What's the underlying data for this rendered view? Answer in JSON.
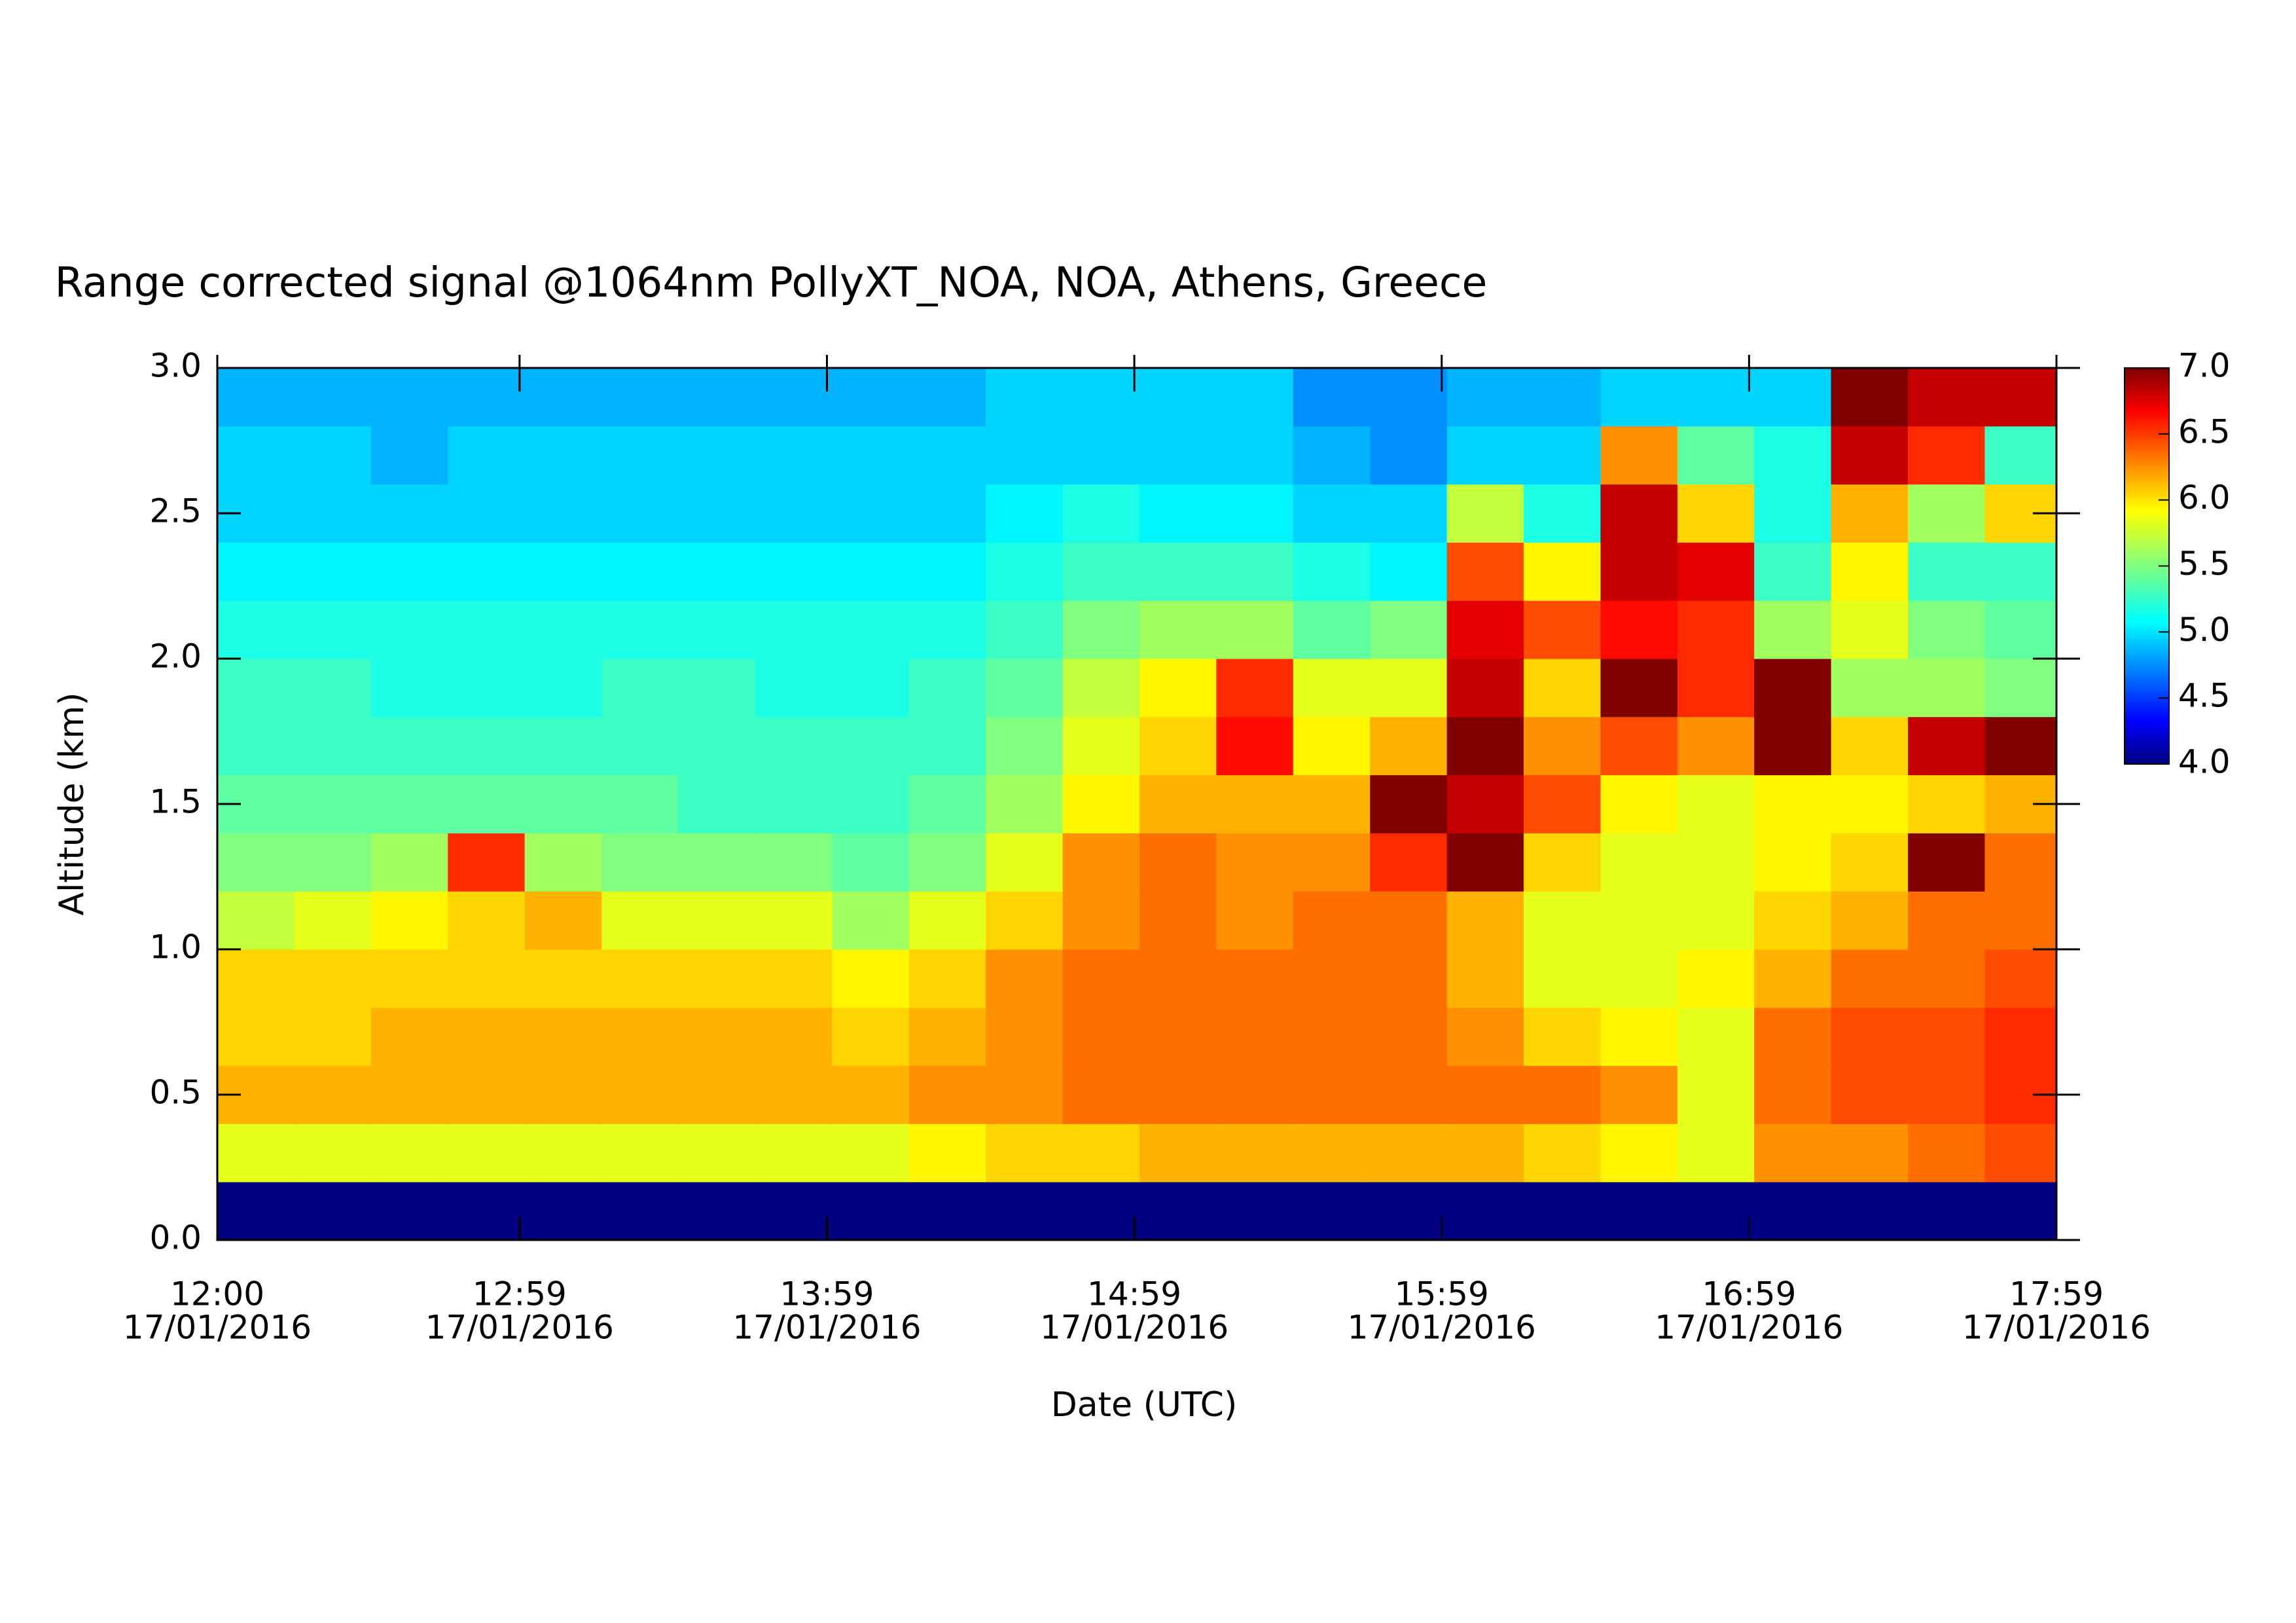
{
  "chart_data": {
    "type": "heatmap",
    "title": "Range corrected signal @1064nm  PollyXT_NOA, NOA, Athens, Greece",
    "xlabel": "Date (UTC)",
    "ylabel": "Altitude (km)",
    "xlim": [
      0,
      359
    ],
    "xticks": [
      {
        "value": 0,
        "label": "12:00"
      },
      {
        "value": 59,
        "label": "12:59"
      },
      {
        "value": 119,
        "label": "13:59"
      },
      {
        "value": 179,
        "label": "14:59"
      },
      {
        "value": 239,
        "label": "15:59"
      },
      {
        "value": 299,
        "label": "16:59"
      },
      {
        "value": 359,
        "label": "17:59"
      }
    ],
    "xtick_dates": [
      "17/01/2016",
      "17/01/2016",
      "17/01/2016",
      "17/01/2016",
      "17/01/2016",
      "17/01/2016",
      "17/01/2016"
    ],
    "ylim": [
      0,
      3
    ],
    "yticks": [
      {
        "value": 0,
        "label": "0.0"
      },
      {
        "value": 0.5,
        "label": "0.5"
      },
      {
        "value": 1,
        "label": "1.0"
      },
      {
        "value": 1.5,
        "label": "1.5"
      },
      {
        "value": 2,
        "label": "2.0"
      },
      {
        "value": 2.5,
        "label": "2.5"
      },
      {
        "value": 3,
        "label": "3.0"
      }
    ],
    "colormap": "jet",
    "clim": [
      4,
      7
    ],
    "cticks": [
      {
        "value": 4,
        "label": "4.0"
      },
      {
        "value": 4.5,
        "label": "4.5"
      },
      {
        "value": 5,
        "label": "5.0"
      },
      {
        "value": 5.5,
        "label": "5.5"
      },
      {
        "value": 6,
        "label": "6.0"
      },
      {
        "value": 6.5,
        "label": "6.5"
      },
      {
        "value": 7,
        "label": "7.0"
      }
    ],
    "x": [
      7.5,
      22.5,
      37.5,
      52.5,
      67.5,
      82.5,
      97.5,
      112.5,
      127.5,
      142.5,
      157.5,
      172.5,
      187.5,
      202.5,
      217.5,
      232.5,
      247.5,
      262.5,
      277.5,
      292.5,
      307.5,
      322.5,
      337.5,
      352.5
    ],
    "y": [
      0.1,
      0.3,
      0.5,
      0.7,
      0.9,
      1.1,
      1.3,
      1.5,
      1.7,
      1.9,
      2.1,
      2.3,
      2.5,
      2.7,
      2.9
    ],
    "z": [
      [
        4.0,
        4.0,
        4.0,
        4.0,
        4.0,
        4.0,
        4.0,
        4.0,
        4.0,
        4.0,
        4.0,
        4.0,
        4.0,
        4.0,
        4.0,
        4.0,
        4.0,
        4.0,
        4.0,
        4.0,
        4.0,
        4.0,
        4.0,
        4.0
      ],
      [
        5.8,
        5.8,
        5.8,
        5.8,
        5.8,
        5.8,
        5.8,
        5.8,
        5.8,
        5.9,
        6.0,
        6.0,
        6.1,
        6.1,
        6.1,
        6.1,
        6.1,
        6.0,
        5.9,
        5.8,
        6.2,
        6.2,
        6.3,
        6.4
      ],
      [
        6.1,
        6.1,
        6.1,
        6.1,
        6.1,
        6.1,
        6.1,
        6.1,
        6.1,
        6.2,
        6.2,
        6.3,
        6.3,
        6.3,
        6.3,
        6.3,
        6.3,
        6.3,
        6.2,
        5.8,
        6.3,
        6.4,
        6.4,
        6.5
      ],
      [
        6.0,
        6.0,
        6.1,
        6.1,
        6.1,
        6.1,
        6.1,
        6.1,
        6.0,
        6.1,
        6.2,
        6.3,
        6.3,
        6.3,
        6.3,
        6.3,
        6.2,
        6.0,
        5.9,
        5.8,
        6.3,
        6.4,
        6.4,
        6.5
      ],
      [
        6.0,
        6.0,
        6.0,
        6.0,
        6.0,
        6.0,
        6.0,
        6.0,
        5.9,
        6.0,
        6.2,
        6.3,
        6.3,
        6.3,
        6.3,
        6.3,
        6.1,
        5.8,
        5.8,
        5.9,
        6.1,
        6.3,
        6.3,
        6.4
      ],
      [
        5.7,
        5.8,
        5.9,
        6.0,
        6.1,
        5.8,
        5.8,
        5.8,
        5.6,
        5.8,
        6.0,
        6.2,
        6.3,
        6.2,
        6.3,
        6.3,
        6.1,
        5.8,
        5.8,
        5.8,
        6.0,
        6.1,
        6.3,
        6.3
      ],
      [
        5.5,
        5.5,
        5.6,
        6.5,
        5.6,
        5.5,
        5.5,
        5.5,
        5.4,
        5.5,
        5.8,
        6.2,
        6.3,
        6.2,
        6.2,
        6.5,
        7.0,
        6.0,
        5.8,
        5.8,
        5.9,
        6.0,
        7.0,
        6.3
      ],
      [
        5.4,
        5.4,
        5.4,
        5.4,
        5.4,
        5.4,
        5.3,
        5.3,
        5.3,
        5.4,
        5.6,
        5.9,
        6.1,
        6.1,
        6.1,
        7.0,
        6.8,
        6.4,
        5.9,
        5.8,
        5.9,
        5.9,
        6.0,
        6.1
      ],
      [
        5.3,
        5.3,
        5.3,
        5.3,
        5.3,
        5.3,
        5.3,
        5.3,
        5.3,
        5.3,
        5.5,
        5.8,
        6.0,
        6.6,
        5.9,
        6.1,
        7.0,
        6.2,
        6.4,
        6.2,
        7.0,
        6.0,
        6.8,
        7.0
      ],
      [
        5.3,
        5.3,
        5.2,
        5.2,
        5.2,
        5.3,
        5.3,
        5.2,
        5.2,
        5.3,
        5.4,
        5.7,
        5.9,
        6.5,
        5.8,
        5.8,
        6.8,
        6.0,
        7.0,
        6.5,
        7.0,
        5.6,
        5.6,
        5.5
      ],
      [
        5.2,
        5.2,
        5.2,
        5.2,
        5.2,
        5.2,
        5.2,
        5.2,
        5.2,
        5.2,
        5.3,
        5.5,
        5.6,
        5.6,
        5.4,
        5.5,
        6.7,
        6.4,
        6.6,
        6.5,
        5.6,
        5.8,
        5.5,
        5.4
      ],
      [
        5.1,
        5.1,
        5.1,
        5.1,
        5.1,
        5.1,
        5.1,
        5.1,
        5.1,
        5.1,
        5.2,
        5.3,
        5.3,
        5.3,
        5.2,
        5.1,
        6.4,
        5.9,
        6.8,
        6.7,
        5.3,
        5.9,
        5.3,
        5.3
      ],
      [
        5.0,
        5.0,
        5.0,
        5.0,
        5.0,
        5.0,
        5.0,
        5.0,
        5.0,
        5.0,
        5.1,
        5.2,
        5.1,
        5.1,
        5.0,
        5.0,
        5.7,
        5.2,
        6.8,
        6.0,
        5.2,
        6.1,
        5.6,
        6.0
      ],
      [
        5.0,
        5.0,
        4.9,
        5.0,
        5.0,
        5.0,
        5.0,
        5.0,
        5.0,
        5.0,
        5.0,
        5.0,
        5.0,
        5.0,
        4.9,
        4.8,
        5.0,
        5.0,
        6.2,
        5.4,
        5.2,
        6.8,
        6.5,
        5.3
      ],
      [
        4.9,
        4.9,
        4.9,
        4.9,
        4.9,
        4.9,
        4.9,
        4.9,
        4.9,
        4.9,
        5.0,
        5.0,
        5.0,
        5.0,
        4.8,
        4.8,
        4.9,
        4.9,
        5.0,
        5.0,
        5.0,
        7.0,
        6.8,
        6.8
      ]
    ]
  }
}
